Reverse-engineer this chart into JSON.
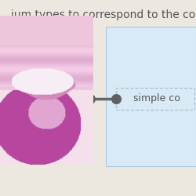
{
  "background_color": "#ede8df",
  "title_text": "ium types to correspond to the co",
  "title_fontsize": 10,
  "title_color": "#555555",
  "connector_color": "#666666",
  "connector_linewidth": 2.5,
  "dot_size": 70,
  "dot_color": "#606060",
  "blue_box_face": "#d8eaf6",
  "blue_box_edge": "#a8c8e0",
  "dashed_box_color": "#aabccc",
  "label_text": "simple co",
  "label_fontsize": 9,
  "label_color": "#555555"
}
